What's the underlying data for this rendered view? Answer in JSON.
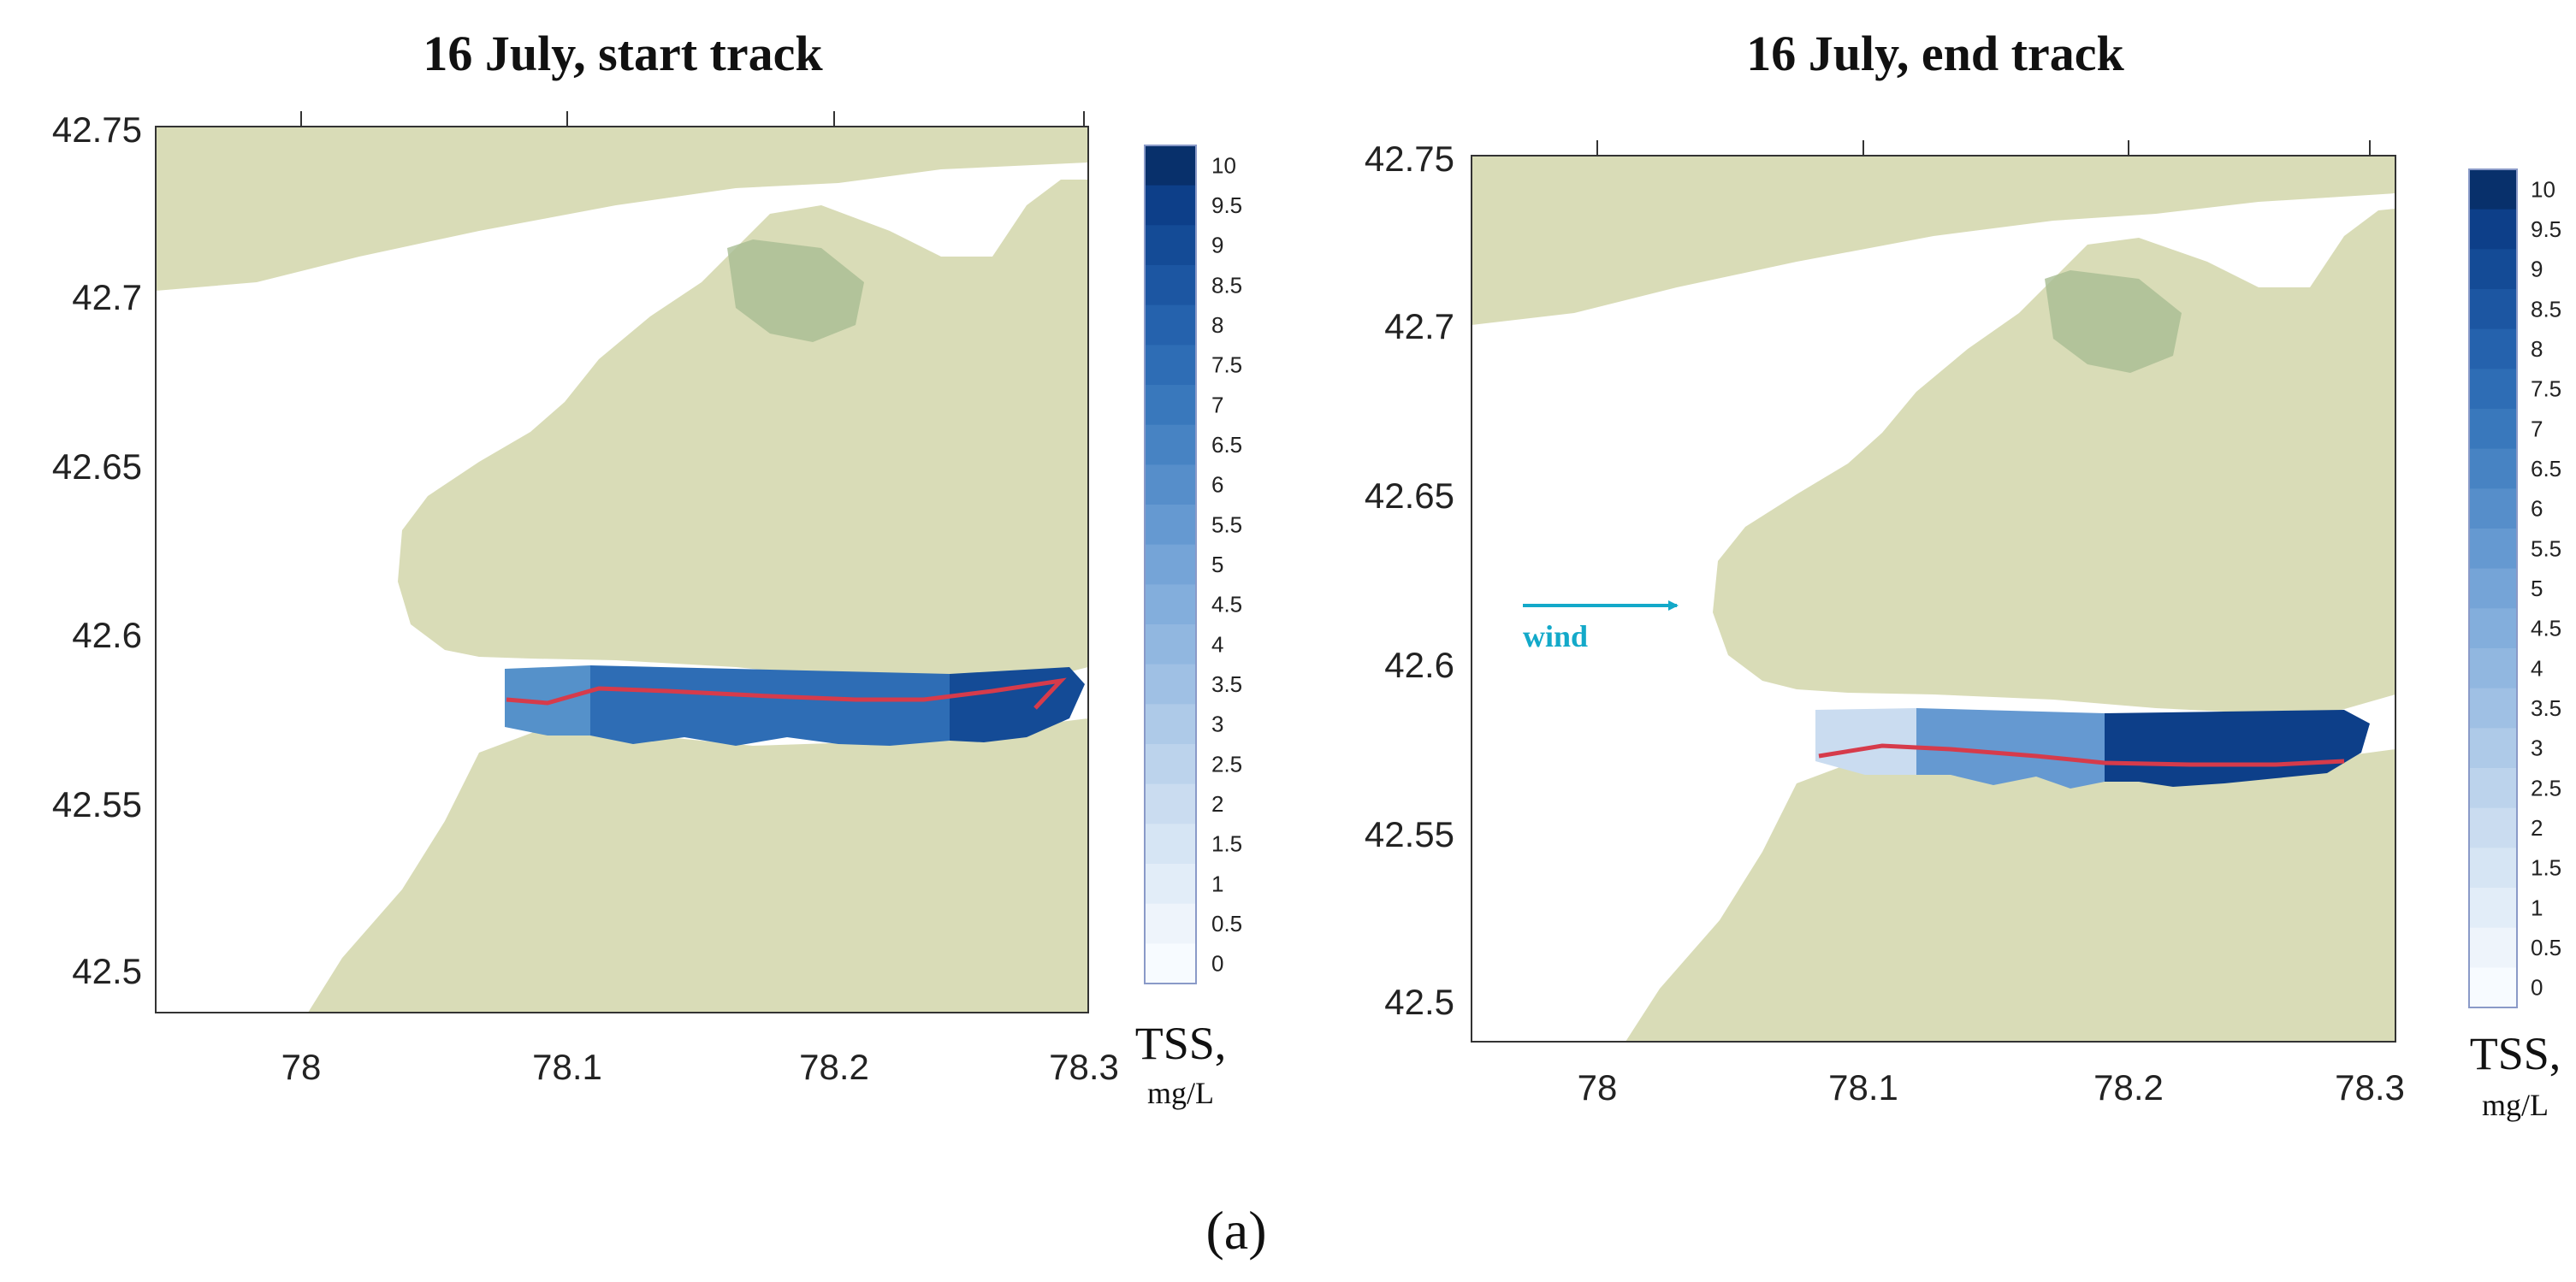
{
  "colors": {
    "land": "#d9dcb7",
    "water": "#ffffff",
    "park": "#a7bd92",
    "track": "#d63b4b",
    "wind": "#13a9c9",
    "scale": [
      "#f7fbff",
      "#eef4fb",
      "#e2edf8",
      "#d6e5f4",
      "#cadcf0",
      "#bcd3ec",
      "#aecae8",
      "#9fc0e4",
      "#91b7e0",
      "#83aedc",
      "#75a4d7",
      "#6599d1",
      "#568eca",
      "#4783c3",
      "#3978bc",
      "#2e6db5",
      "#2562ad",
      "#1c56a2",
      "#144b96",
      "#0d3f89",
      "#08306b"
    ]
  },
  "caption": "(a)",
  "panels": [
    {
      "title": "16 July, start track",
      "y_ticks": [
        "42.75",
        "42.7",
        "42.65",
        "42.6",
        "42.55",
        "42.5"
      ],
      "x_ticks": [
        "78",
        "78.1",
        "78.2",
        "78.3"
      ],
      "colorbar": {
        "labels": [
          "10",
          "9.5",
          "9",
          "8.5",
          "8",
          "7.5",
          "7",
          "6.5",
          "6",
          "5.5",
          "5",
          "4.5",
          "4",
          "3.5",
          "3",
          "2.5",
          "2",
          "1.5",
          "1",
          "0.5",
          "0"
        ],
        "unit_main": "TSS,",
        "unit_sub": "mg/L"
      },
      "tss_segments": [
        {
          "lon_start": 78.08,
          "lon_end": 78.12,
          "value": 5.5
        },
        {
          "lon_start": 78.12,
          "lon_end": 78.25,
          "value": 7.5
        },
        {
          "lon_start": 78.25,
          "lon_end": 78.3,
          "value": 9.5
        }
      ],
      "wind": null
    },
    {
      "title": "16 July, end track",
      "y_ticks": [
        "42.75",
        "42.7",
        "42.65",
        "42.6",
        "42.55",
        "42.5"
      ],
      "x_ticks": [
        "78",
        "78.1",
        "78.2",
        "78.3"
      ],
      "colorbar": {
        "labels": [
          "10",
          "9.5",
          "9",
          "8.5",
          "8",
          "7.5",
          "7",
          "6.5",
          "6",
          "5.5",
          "5",
          "4.5",
          "4",
          "3.5",
          "3",
          "2.5",
          "2",
          "1.5",
          "1",
          "0.5",
          "0"
        ],
        "unit_main": "TSS,",
        "unit_sub": "mg/L"
      },
      "tss_segments": [
        {
          "lon_start": 78.08,
          "lon_end": 78.12,
          "value": 2
        },
        {
          "lon_start": 78.12,
          "lon_end": 78.2,
          "value": 5.5
        },
        {
          "lon_start": 78.2,
          "lon_end": 78.3,
          "value": 9.5
        }
      ],
      "wind": {
        "label": "wind"
      }
    }
  ]
}
